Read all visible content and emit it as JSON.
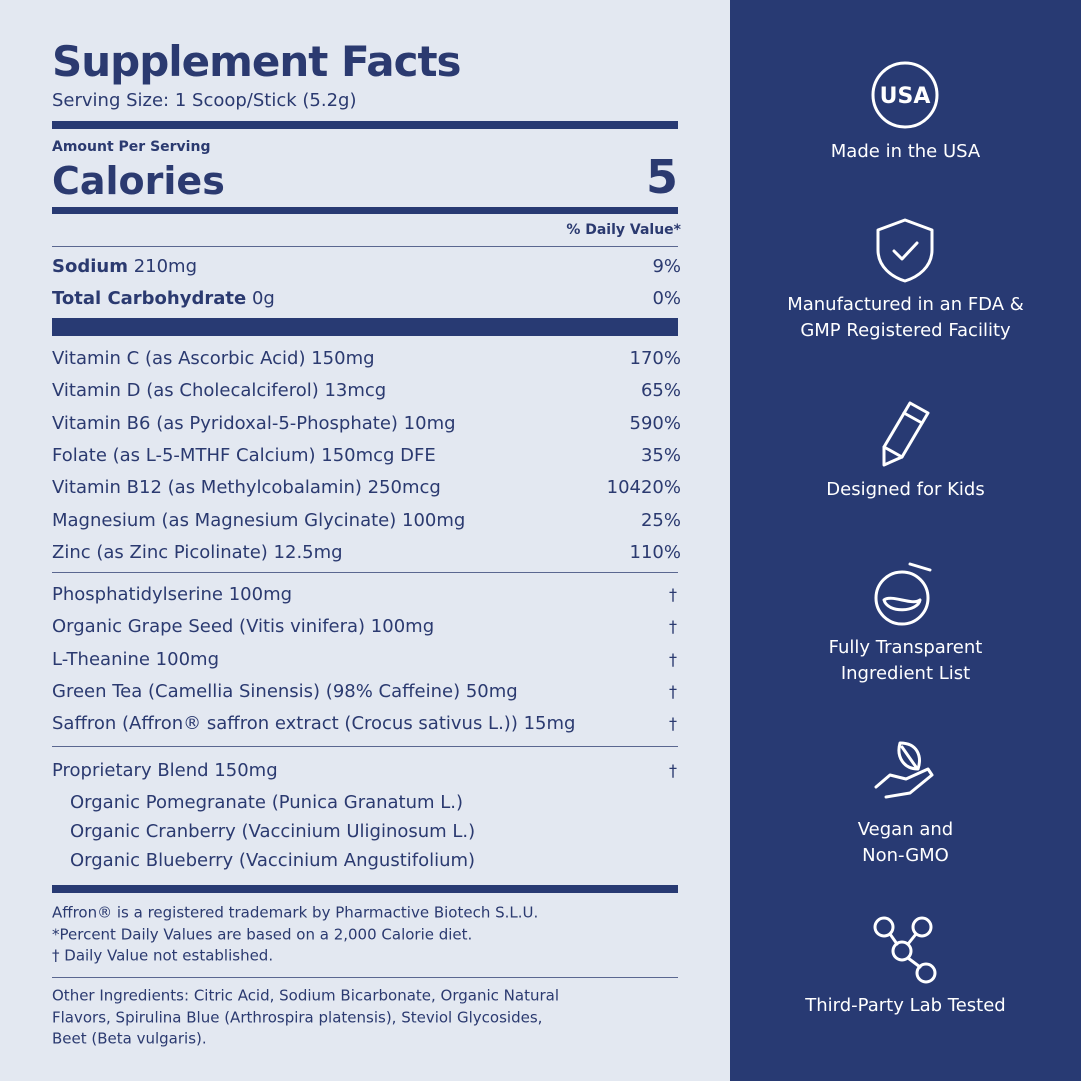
{
  "label": {
    "title": "Supplement Facts",
    "serving_size": "Serving Size: 1 Scoop/Stick (5.2g)",
    "amount_per_serving": "Amount Per Serving",
    "calories_label": "Calories",
    "calories_value": "5",
    "dv_header": "% Daily Value*",
    "nutrients": [
      {
        "name": "Sodium",
        "amount": "210mg",
        "dv": "9%"
      },
      {
        "name": "Total Carbohydrate",
        "amount": "0g",
        "dv": "0%"
      }
    ],
    "vitamins": [
      {
        "text": "Vitamin C (as Ascorbic Acid) 150mg",
        "dv": "170%"
      },
      {
        "text": "Vitamin D (as Cholecalciferol) 13mcg",
        "dv": "65%"
      },
      {
        "text": "Vitamin B6 (as Pyridoxal-5-Phosphate) 10mg",
        "dv": "590%"
      },
      {
        "text": "Folate (as L-5-MTHF Calcium) 150mcg DFE",
        "dv": "35%"
      },
      {
        "text": "Vitamin B12 (as Methylcobalamin) 250mcg",
        "dv": "10420%"
      },
      {
        "text": "Magnesium (as Magnesium Glycinate) 100mg",
        "dv": "25%"
      },
      {
        "text": "Zinc (as Zinc Picolinate) 12.5mg",
        "dv": "110%"
      }
    ],
    "others": [
      {
        "text": "Phosphatidylserine 100mg",
        "dv": "†"
      },
      {
        "text": "Organic Grape Seed (Vitis vinifera) 100mg",
        "dv": "†"
      },
      {
        "text": "L-Theanine 100mg",
        "dv": "†"
      },
      {
        "text": "Green Tea (Camellia Sinensis) (98% Caffeine) 50mg",
        "dv": "†"
      },
      {
        "text": "Saffron (Affron® saffron extract (Crocus sativus L.)) 15mg",
        "dv": "†"
      }
    ],
    "blend": {
      "text": "Proprietary Blend 150mg",
      "dv": "†",
      "items": [
        "Organic Pomegranate (Punica Granatum L.)",
        "Organic Cranberry (Vaccinium Uliginosum L.)",
        "Organic Blueberry (Vaccinium Angustifolium)"
      ]
    },
    "footnotes": [
      "Affron® is a registered trademark by Pharmactive Biotech S.L.U.",
      "*Percent Daily Values are based on a 2,000 Calorie diet.",
      "† Daily Value not established."
    ],
    "other_ingredients": [
      "Other Ingredients: Citric Acid, Sodium Bicarbonate, Organic Natural",
      "Flavors, Spirulina Blue (Arthrospira platensis), Steviol Glycosides,",
      "Beet (Beta vulgaris)."
    ]
  },
  "badges": [
    {
      "icon": "USA",
      "lines": [
        "Made in the USA"
      ]
    },
    {
      "lines": [
        "Manufactured in an FDA &",
        "GMP Registered Facility"
      ]
    },
    {
      "lines": [
        "Designed for Kids"
      ]
    },
    {
      "lines": [
        "Fully Transparent",
        "Ingredient List"
      ]
    },
    {
      "lines": [
        "Vegan and",
        "Non-GMO"
      ]
    },
    {
      "lines": [
        "Third-Party Lab Tested"
      ]
    }
  ]
}
